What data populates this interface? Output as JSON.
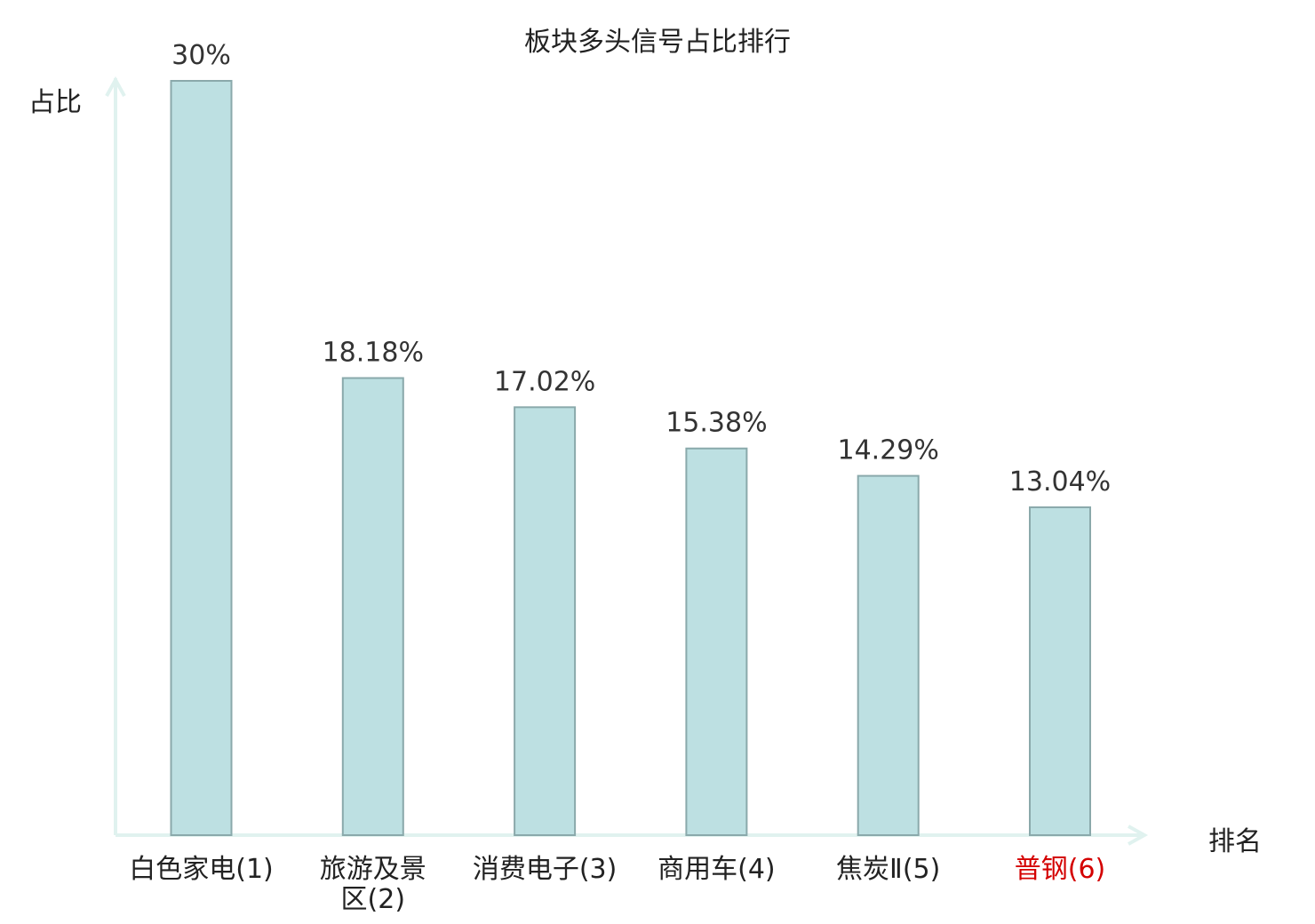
{
  "chart_data": {
    "type": "bar",
    "title": "板块多头信号占比排行",
    "ylabel": "占比",
    "xlabel": "排名",
    "categories": [
      "白色家电",
      "旅游及景区",
      "消费电子",
      "商用车",
      "焦炭Ⅱ",
      "普钢"
    ],
    "ranks": [
      "(1)",
      "(2)",
      "(3)",
      "(4)",
      "(5)",
      "(6)"
    ],
    "values": [
      30,
      18.18,
      17.02,
      15.38,
      14.29,
      13.04
    ],
    "value_labels": [
      "30%",
      "18.18%",
      "17.02%",
      "15.38%",
      "14.29%",
      "13.04%"
    ],
    "ylim": [
      0,
      30
    ],
    "grid": false,
    "highlight_index": 5,
    "colors": {
      "bar_fill": "#bde0e2",
      "bar_stroke": "#8aa9ab",
      "axis": "#e0f2ef",
      "highlight_text": "#d40000",
      "text": "#222222"
    }
  }
}
